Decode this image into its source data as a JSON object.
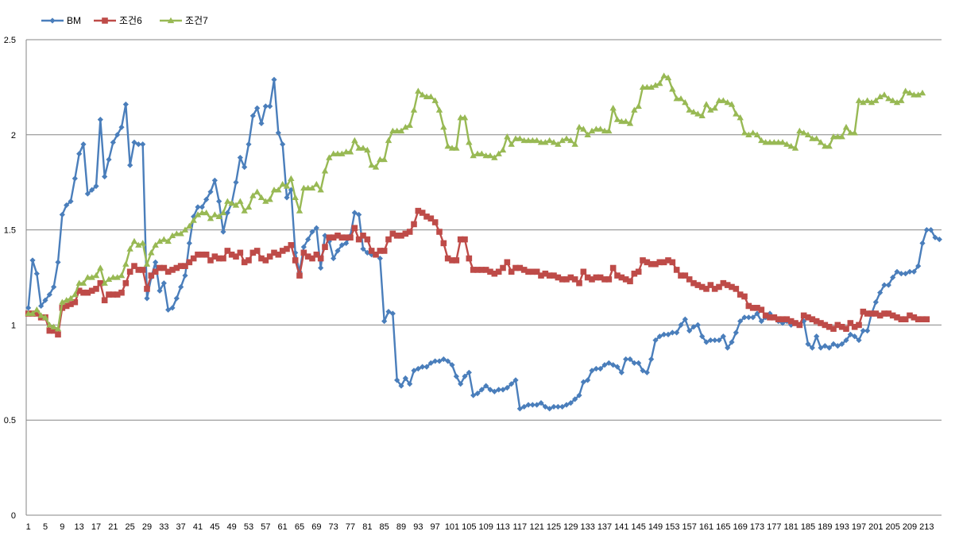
{
  "chart_data": {
    "type": "line",
    "title": "",
    "xlabel": "",
    "ylabel": "",
    "ylim": [
      0,
      2.5
    ],
    "yticks": [
      "0",
      "0.5",
      "1",
      "1.5",
      "2",
      "2.5"
    ],
    "xtick_step": 4,
    "grid": "horizontal",
    "legend_position": "top-left",
    "series": [
      {
        "name": "BM",
        "color": "#4a7ebb",
        "marker": "diamond",
        "values": [
          1.09,
          1.34,
          1.27,
          1.1,
          1.13,
          1.16,
          1.2,
          1.33,
          1.58,
          1.63,
          1.65,
          1.77,
          1.9,
          1.95,
          1.69,
          1.71,
          1.73,
          2.08,
          1.78,
          1.87,
          1.96,
          2.0,
          2.04,
          2.16,
          1.84,
          1.96,
          1.95,
          1.95,
          1.14,
          1.25,
          1.33,
          1.18,
          1.22,
          1.08,
          1.09,
          1.14,
          1.2,
          1.26,
          1.43,
          1.57,
          1.62,
          1.62,
          1.66,
          1.7,
          1.76,
          1.65,
          1.49,
          1.59,
          1.64,
          1.75,
          1.88,
          1.83,
          1.95,
          2.1,
          2.14,
          2.06,
          2.15,
          2.15,
          2.29,
          2.01,
          1.95,
          1.67,
          1.71,
          1.38,
          1.28,
          1.41,
          1.45,
          1.49,
          1.51,
          1.3,
          1.47,
          1.44,
          1.35,
          1.39,
          1.42,
          1.43,
          1.47,
          1.59,
          1.58,
          1.4,
          1.38,
          1.37,
          1.37,
          1.35,
          1.02,
          1.07,
          1.06,
          0.71,
          0.68,
          0.72,
          0.69,
          0.76,
          0.77,
          0.78,
          0.78,
          0.8,
          0.81,
          0.81,
          0.82,
          0.81,
          0.79,
          0.73,
          0.69,
          0.73,
          0.75,
          0.63,
          0.64,
          0.66,
          0.68,
          0.66,
          0.65,
          0.66,
          0.66,
          0.67,
          0.69,
          0.71,
          0.56,
          0.57,
          0.58,
          0.58,
          0.58,
          0.59,
          0.57,
          0.56,
          0.57,
          0.57,
          0.57,
          0.58,
          0.59,
          0.61,
          0.63,
          0.7,
          0.71,
          0.76,
          0.77,
          0.77,
          0.79,
          0.8,
          0.79,
          0.78,
          0.75,
          0.82,
          0.82,
          0.8,
          0.8,
          0.76,
          0.75,
          0.82,
          0.92,
          0.94,
          0.95,
          0.95,
          0.96,
          0.96,
          1.0,
          1.03,
          0.97,
          0.99,
          1.0,
          0.94,
          0.91,
          0.92,
          0.92,
          0.92,
          0.94,
          0.88,
          0.91,
          0.96,
          1.02,
          1.04,
          1.04,
          1.04,
          1.06,
          1.02,
          1.04,
          1.06,
          1.04,
          1.02,
          1.01,
          1.02,
          1.0,
          1.01,
          1.0,
          1.02,
          0.9,
          0.88,
          0.94,
          0.88,
          0.89,
          0.88,
          0.9,
          0.89,
          0.9,
          0.92,
          0.95,
          0.94,
          0.92,
          0.97,
          0.97,
          1.06,
          1.12,
          1.17,
          1.21,
          1.21,
          1.25,
          1.28,
          1.27,
          1.27,
          1.28,
          1.28,
          1.31,
          1.43,
          1.5,
          1.5,
          1.46,
          1.45
        ]
      },
      {
        "name": "조건6",
        "color": "#be4b48",
        "marker": "square",
        "values": [
          1.06,
          1.06,
          1.06,
          1.04,
          1.04,
          0.97,
          0.97,
          0.95,
          1.09,
          1.1,
          1.11,
          1.12,
          1.18,
          1.17,
          1.17,
          1.18,
          1.19,
          1.22,
          1.13,
          1.16,
          1.16,
          1.16,
          1.17,
          1.22,
          1.28,
          1.31,
          1.29,
          1.29,
          1.19,
          1.26,
          1.28,
          1.3,
          1.3,
          1.28,
          1.29,
          1.3,
          1.31,
          1.31,
          1.33,
          1.35,
          1.37,
          1.37,
          1.37,
          1.34,
          1.36,
          1.35,
          1.35,
          1.39,
          1.37,
          1.36,
          1.38,
          1.33,
          1.34,
          1.38,
          1.39,
          1.35,
          1.34,
          1.36,
          1.38,
          1.37,
          1.39,
          1.4,
          1.42,
          1.34,
          1.26,
          1.38,
          1.36,
          1.35,
          1.37,
          1.35,
          1.41,
          1.46,
          1.46,
          1.47,
          1.46,
          1.46,
          1.46,
          1.51,
          1.45,
          1.47,
          1.45,
          1.39,
          1.37,
          1.39,
          1.39,
          1.45,
          1.48,
          1.47,
          1.47,
          1.48,
          1.49,
          1.53,
          1.6,
          1.59,
          1.57,
          1.56,
          1.54,
          1.49,
          1.43,
          1.35,
          1.34,
          1.34,
          1.45,
          1.45,
          1.35,
          1.29,
          1.29,
          1.29,
          1.29,
          1.28,
          1.27,
          1.28,
          1.3,
          1.33,
          1.28,
          1.3,
          1.3,
          1.29,
          1.28,
          1.28,
          1.28,
          1.26,
          1.27,
          1.26,
          1.26,
          1.25,
          1.24,
          1.24,
          1.25,
          1.24,
          1.22,
          1.28,
          1.25,
          1.24,
          1.25,
          1.25,
          1.24,
          1.24,
          1.3,
          1.26,
          1.25,
          1.24,
          1.23,
          1.27,
          1.28,
          1.34,
          1.33,
          1.32,
          1.32,
          1.33,
          1.33,
          1.34,
          1.33,
          1.29,
          1.26,
          1.26,
          1.24,
          1.22,
          1.21,
          1.2,
          1.19,
          1.21,
          1.19,
          1.2,
          1.22,
          1.21,
          1.2,
          1.19,
          1.16,
          1.15,
          1.1,
          1.09,
          1.09,
          1.08,
          1.05,
          1.04,
          1.04,
          1.03,
          1.03,
          1.03,
          1.02,
          1.01,
          1.0,
          1.05,
          1.04,
          1.03,
          1.02,
          1.01,
          1.0,
          0.99,
          0.98,
          1.0,
          0.99,
          0.98,
          1.01,
          0.99,
          1.0,
          1.07,
          1.06,
          1.06,
          1.06,
          1.05,
          1.06,
          1.06,
          1.05,
          1.04,
          1.03,
          1.03,
          1.05,
          1.04,
          1.03,
          1.03,
          1.03
        ]
      },
      {
        "name": "조건7",
        "color": "#98b954",
        "marker": "triangle",
        "values": [
          1.06,
          1.06,
          1.08,
          1.05,
          1.04,
          1.0,
          0.99,
          0.98,
          1.12,
          1.13,
          1.14,
          1.16,
          1.22,
          1.22,
          1.25,
          1.25,
          1.26,
          1.3,
          1.22,
          1.24,
          1.25,
          1.25,
          1.26,
          1.32,
          1.4,
          1.44,
          1.42,
          1.43,
          1.32,
          1.38,
          1.42,
          1.44,
          1.45,
          1.44,
          1.47,
          1.48,
          1.48,
          1.5,
          1.52,
          1.55,
          1.58,
          1.59,
          1.59,
          1.56,
          1.58,
          1.57,
          1.59,
          1.65,
          1.64,
          1.63,
          1.65,
          1.6,
          1.62,
          1.68,
          1.7,
          1.67,
          1.65,
          1.66,
          1.71,
          1.71,
          1.74,
          1.73,
          1.77,
          1.67,
          1.6,
          1.72,
          1.72,
          1.72,
          1.74,
          1.71,
          1.81,
          1.88,
          1.9,
          1.9,
          1.9,
          1.91,
          1.91,
          1.97,
          1.93,
          1.93,
          1.92,
          1.84,
          1.83,
          1.87,
          1.87,
          1.97,
          2.02,
          2.02,
          2.02,
          2.04,
          2.05,
          2.13,
          2.23,
          2.21,
          2.2,
          2.2,
          2.18,
          2.13,
          2.04,
          1.94,
          1.93,
          1.93,
          2.09,
          2.09,
          1.96,
          1.89,
          1.9,
          1.9,
          1.89,
          1.89,
          1.88,
          1.9,
          1.92,
          1.99,
          1.95,
          1.98,
          1.98,
          1.97,
          1.97,
          1.97,
          1.97,
          1.96,
          1.96,
          1.97,
          1.96,
          1.95,
          1.97,
          1.98,
          1.97,
          1.95,
          2.04,
          2.03,
          2.0,
          2.02,
          2.03,
          2.03,
          2.02,
          2.02,
          2.14,
          2.08,
          2.07,
          2.07,
          2.06,
          2.13,
          2.15,
          2.25,
          2.25,
          2.25,
          2.26,
          2.27,
          2.31,
          2.3,
          2.24,
          2.19,
          2.19,
          2.17,
          2.13,
          2.12,
          2.11,
          2.1,
          2.16,
          2.13,
          2.14,
          2.18,
          2.18,
          2.17,
          2.16,
          2.11,
          2.09,
          2.01,
          2.0,
          2.01,
          2.0,
          1.97,
          1.96,
          1.96,
          1.96,
          1.96,
          1.96,
          1.95,
          1.94,
          1.93,
          2.02,
          2.01,
          2.0,
          1.98,
          1.98,
          1.96,
          1.94,
          1.94,
          1.99,
          1.99,
          1.99,
          2.04,
          2.01,
          2.01,
          2.18,
          2.17,
          2.18,
          2.17,
          2.18,
          2.2,
          2.21,
          2.19,
          2.18,
          2.17,
          2.18,
          2.23,
          2.22,
          2.21,
          2.21,
          2.22
        ]
      }
    ]
  }
}
